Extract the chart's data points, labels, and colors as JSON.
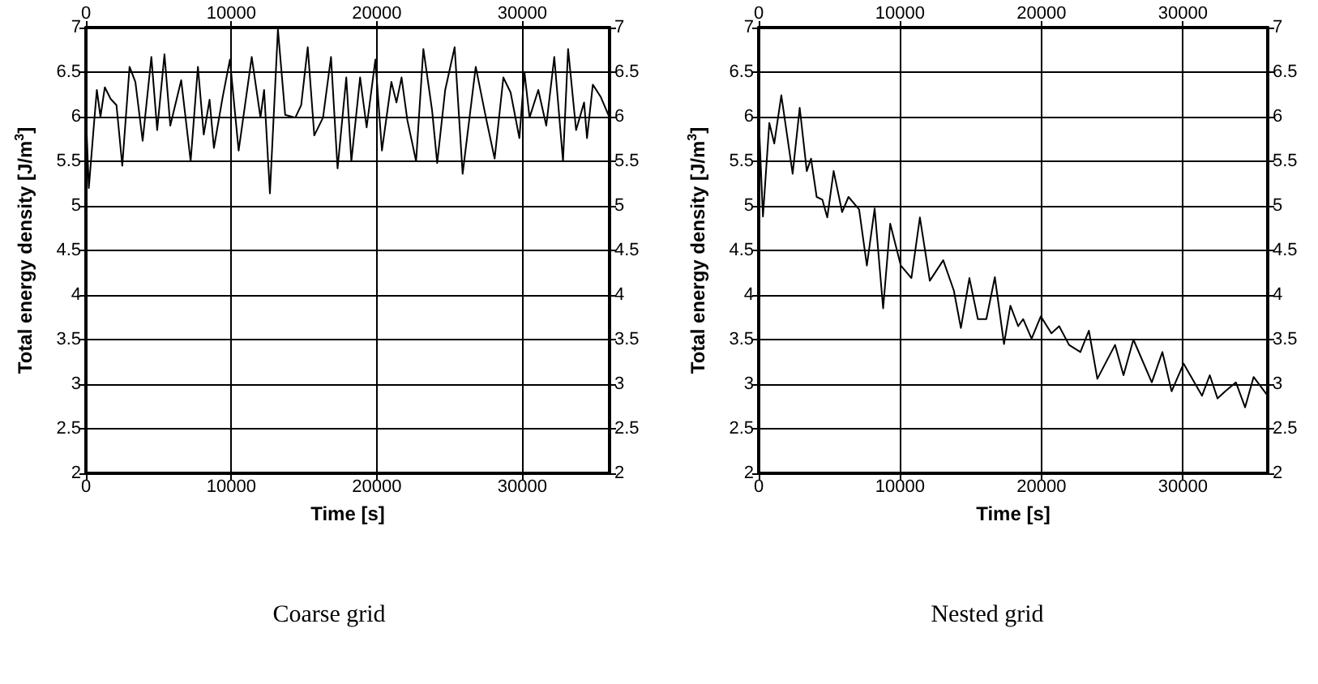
{
  "chart_data": [
    {
      "type": "line",
      "title": "Coarse grid",
      "xlabel": "Time [s]",
      "ylabel": "Total energy density [J/m$^{3}$]",
      "line_style": "solid",
      "marker": "none",
      "grid": true,
      "xlim": [
        0,
        36000
      ],
      "xticks": [
        0,
        10000,
        20000,
        30000
      ],
      "x2lim": [
        0,
        36000
      ],
      "x2ticks": [
        0,
        10000,
        20000,
        30000
      ],
      "ylim": [
        2,
        7
      ],
      "yticks": [
        2,
        2.5,
        3,
        3.5,
        4,
        4.5,
        5,
        5.5,
        6,
        6.5,
        7
      ],
      "y2lim": [
        2,
        7
      ],
      "y2ticks": [
        2,
        2.5,
        3,
        3.5,
        4,
        4.5,
        5,
        5.5,
        6,
        6.5,
        7
      ],
      "series": [
        {
          "color": "#000000",
          "x": [
            0,
            200,
            560,
            750,
            1000,
            1300,
            1700,
            2100,
            2500,
            3000,
            3400,
            3900,
            4500,
            4900,
            5400,
            5800,
            6550,
            7200,
            7700,
            8100,
            8500,
            8800,
            9400,
            9900,
            10500,
            11400,
            12000,
            12250,
            12650,
            13200,
            13700,
            14400,
            14800,
            15250,
            15700,
            16300,
            16850,
            17300,
            17900,
            18250,
            18850,
            19300,
            19900,
            20350,
            21000,
            21350,
            21700,
            22100,
            22700,
            23200,
            23800,
            24150,
            24700,
            25350,
            25900,
            26800,
            27500,
            28100,
            28700,
            29200,
            29800,
            30150,
            30500,
            31100,
            31650,
            32200,
            32800,
            33150,
            33700,
            34250,
            34450,
            34850,
            35400,
            36000
          ],
          "values": [
            6.05,
            5.2,
            5.93,
            6.3,
            6.0,
            6.33,
            6.2,
            6.13,
            5.45,
            6.56,
            6.39,
            5.73,
            6.67,
            5.85,
            6.7,
            5.9,
            6.41,
            5.5,
            6.56,
            5.8,
            6.19,
            5.65,
            6.22,
            6.64,
            5.62,
            6.67,
            5.99,
            6.3,
            5.14,
            6.98,
            6.02,
            5.99,
            6.13,
            6.78,
            5.79,
            5.99,
            6.67,
            5.42,
            6.44,
            5.5,
            6.44,
            5.88,
            6.64,
            5.62,
            6.39,
            6.16,
            6.44,
            5.96,
            5.5,
            6.76,
            6.07,
            5.48,
            6.3,
            6.78,
            5.36,
            6.56,
            5.99,
            5.53,
            6.44,
            6.27,
            5.76,
            6.5,
            5.99,
            6.3,
            5.9,
            6.67,
            5.5,
            6.76,
            5.85,
            6.16,
            5.76,
            6.36,
            6.22,
            5.99
          ]
        }
      ]
    },
    {
      "type": "line",
      "title": "Nested grid",
      "xlabel": "Time [s]",
      "ylabel": "Total energy density [J/m$^{3}$]",
      "line_style": "solid",
      "marker": "none",
      "grid": true,
      "xlim": [
        0,
        36000
      ],
      "xticks": [
        0,
        10000,
        20000,
        30000
      ],
      "x2lim": [
        0,
        36000
      ],
      "x2ticks": [
        0,
        10000,
        20000,
        30000
      ],
      "ylim": [
        2,
        7
      ],
      "yticks": [
        2,
        2.5,
        3,
        3.5,
        4,
        4.5,
        5,
        5.5,
        6,
        6.5,
        7
      ],
      "y2lim": [
        2,
        7
      ],
      "y2ticks": [
        2,
        2.5,
        3,
        3.5,
        4,
        4.5,
        5,
        5.5,
        6,
        6.5,
        7
      ],
      "series": [
        {
          "color": "#000000",
          "x": [
            0,
            300,
            750,
            1100,
            1600,
            2400,
            2900,
            3400,
            3700,
            4100,
            4500,
            4850,
            5300,
            5900,
            6350,
            7100,
            7650,
            8200,
            8800,
            9300,
            10050,
            10800,
            11400,
            12100,
            13050,
            13800,
            14300,
            14900,
            15500,
            16100,
            16700,
            17350,
            17800,
            18350,
            18700,
            19300,
            19950,
            20700,
            21250,
            21950,
            22750,
            23350,
            23950,
            25200,
            25800,
            26500,
            27800,
            28550,
            29200,
            30050,
            31350,
            31900,
            32450,
            33000,
            33750,
            34400,
            35000,
            36000
          ],
          "values": [
            5.99,
            4.88,
            5.93,
            5.7,
            6.24,
            5.36,
            6.1,
            5.39,
            5.53,
            5.1,
            5.07,
            4.87,
            5.39,
            4.93,
            5.1,
            4.96,
            4.33,
            4.97,
            3.85,
            4.8,
            4.33,
            4.19,
            4.87,
            4.16,
            4.39,
            4.05,
            3.63,
            4.19,
            3.73,
            3.73,
            4.2,
            3.45,
            3.88,
            3.65,
            3.73,
            3.51,
            3.76,
            3.57,
            3.65,
            3.44,
            3.36,
            3.6,
            3.06,
            3.44,
            3.1,
            3.5,
            3.02,
            3.36,
            2.92,
            3.23,
            2.87,
            3.1,
            2.84,
            2.92,
            3.02,
            2.74,
            3.08,
            2.87
          ]
        }
      ]
    }
  ]
}
